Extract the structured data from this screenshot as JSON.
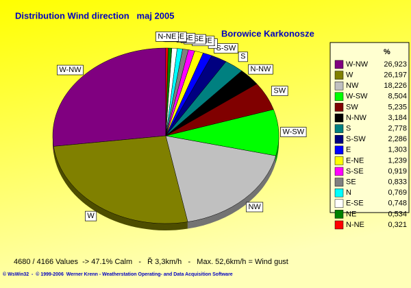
{
  "chart_data": {
    "type": "pie",
    "title": "Distribution Wind direction   maj 2005",
    "subtitle": "Borowice Karkonosze",
    "legend_title": "%",
    "categories": [
      "W-NW",
      "W",
      "NW",
      "W-SW",
      "SW",
      "N-NW",
      "S",
      "S-SW",
      "E",
      "E-NE",
      "S-SE",
      "SE",
      "N",
      "E-SE",
      "NE",
      "N-NE"
    ],
    "values": [
      26.923,
      26.197,
      18.226,
      8.504,
      5.235,
      3.184,
      2.778,
      2.286,
      1.303,
      1.239,
      0.919,
      0.833,
      0.769,
      0.748,
      0.534,
      0.321
    ],
    "value_labels": [
      "26,923",
      "26,197",
      "18,226",
      "8,504",
      "5,235",
      "3,184",
      "2,778",
      "2,286",
      "1,303",
      "1,239",
      "0,919",
      "0,833",
      "0,769",
      "0,748",
      "0,534",
      "0,321"
    ],
    "colors": [
      "#800080",
      "#808000",
      "#c0c0c0",
      "#00ff00",
      "#800000",
      "#000000",
      "#008080",
      "#000080",
      "#0000ff",
      "#ffff00",
      "#ff00ff",
      "#808080",
      "#00ffff",
      "#ffffff",
      "#008000",
      "#ff0000"
    ],
    "legend": "right",
    "footer": "4680 / 4166 Values  -> 47.1% Calm   -   Ř 3,3km/h   -   Max. 52,6km/h = Wind gust",
    "copyright": "© WsWin32  -  © 1999-2006  Werner Krenn - Weatherstation Operating- and Data Acquisition Software"
  }
}
